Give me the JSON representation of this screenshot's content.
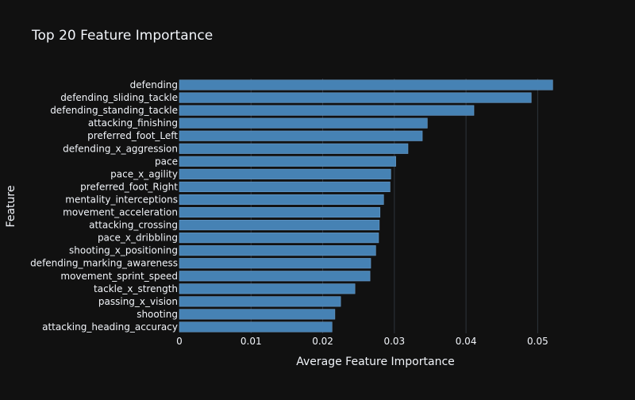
{
  "chart_data": {
    "type": "bar",
    "orientation": "horizontal",
    "title": "Top 20 Feature Importance",
    "xlabel": "Average Feature Importance",
    "ylabel": "Feature",
    "xlim": [
      0,
      0.0545
    ],
    "xticks": [
      0,
      0.01,
      0.02,
      0.03,
      0.04,
      0.05
    ],
    "xtick_labels": [
      "0",
      "0.01",
      "0.02",
      "0.03",
      "0.04",
      "0.05"
    ],
    "grid": true,
    "categories": [
      "defending",
      "defending_sliding_tackle",
      "defending_standing_tackle",
      "attacking_finishing",
      "preferred_foot_Left",
      "defending_x_aggression",
      "pace",
      "pace_x_agility",
      "preferred_foot_Right",
      "mentality_interceptions",
      "movement_acceleration",
      "attacking_crossing",
      "pace_x_dribbling",
      "shooting_x_positioning",
      "defending_marking_awareness",
      "movement_sprint_speed",
      "tackle_x_strength",
      "passing_x_vision",
      "shooting",
      "attacking_heading_accuracy"
    ],
    "values": [
      0.0521,
      0.0491,
      0.0411,
      0.0346,
      0.0339,
      0.0319,
      0.0302,
      0.0295,
      0.0294,
      0.0285,
      0.028,
      0.0279,
      0.0278,
      0.0274,
      0.0267,
      0.0266,
      0.0245,
      0.0225,
      0.0217,
      0.0213
    ]
  },
  "colors": {
    "background": "#111111",
    "bar_fill": "#4682b4",
    "bar_stroke": "#6a9cc9",
    "grid": "#2e343c",
    "text": "#f2f5fa",
    "tick_text": "#f2f5fa"
  }
}
